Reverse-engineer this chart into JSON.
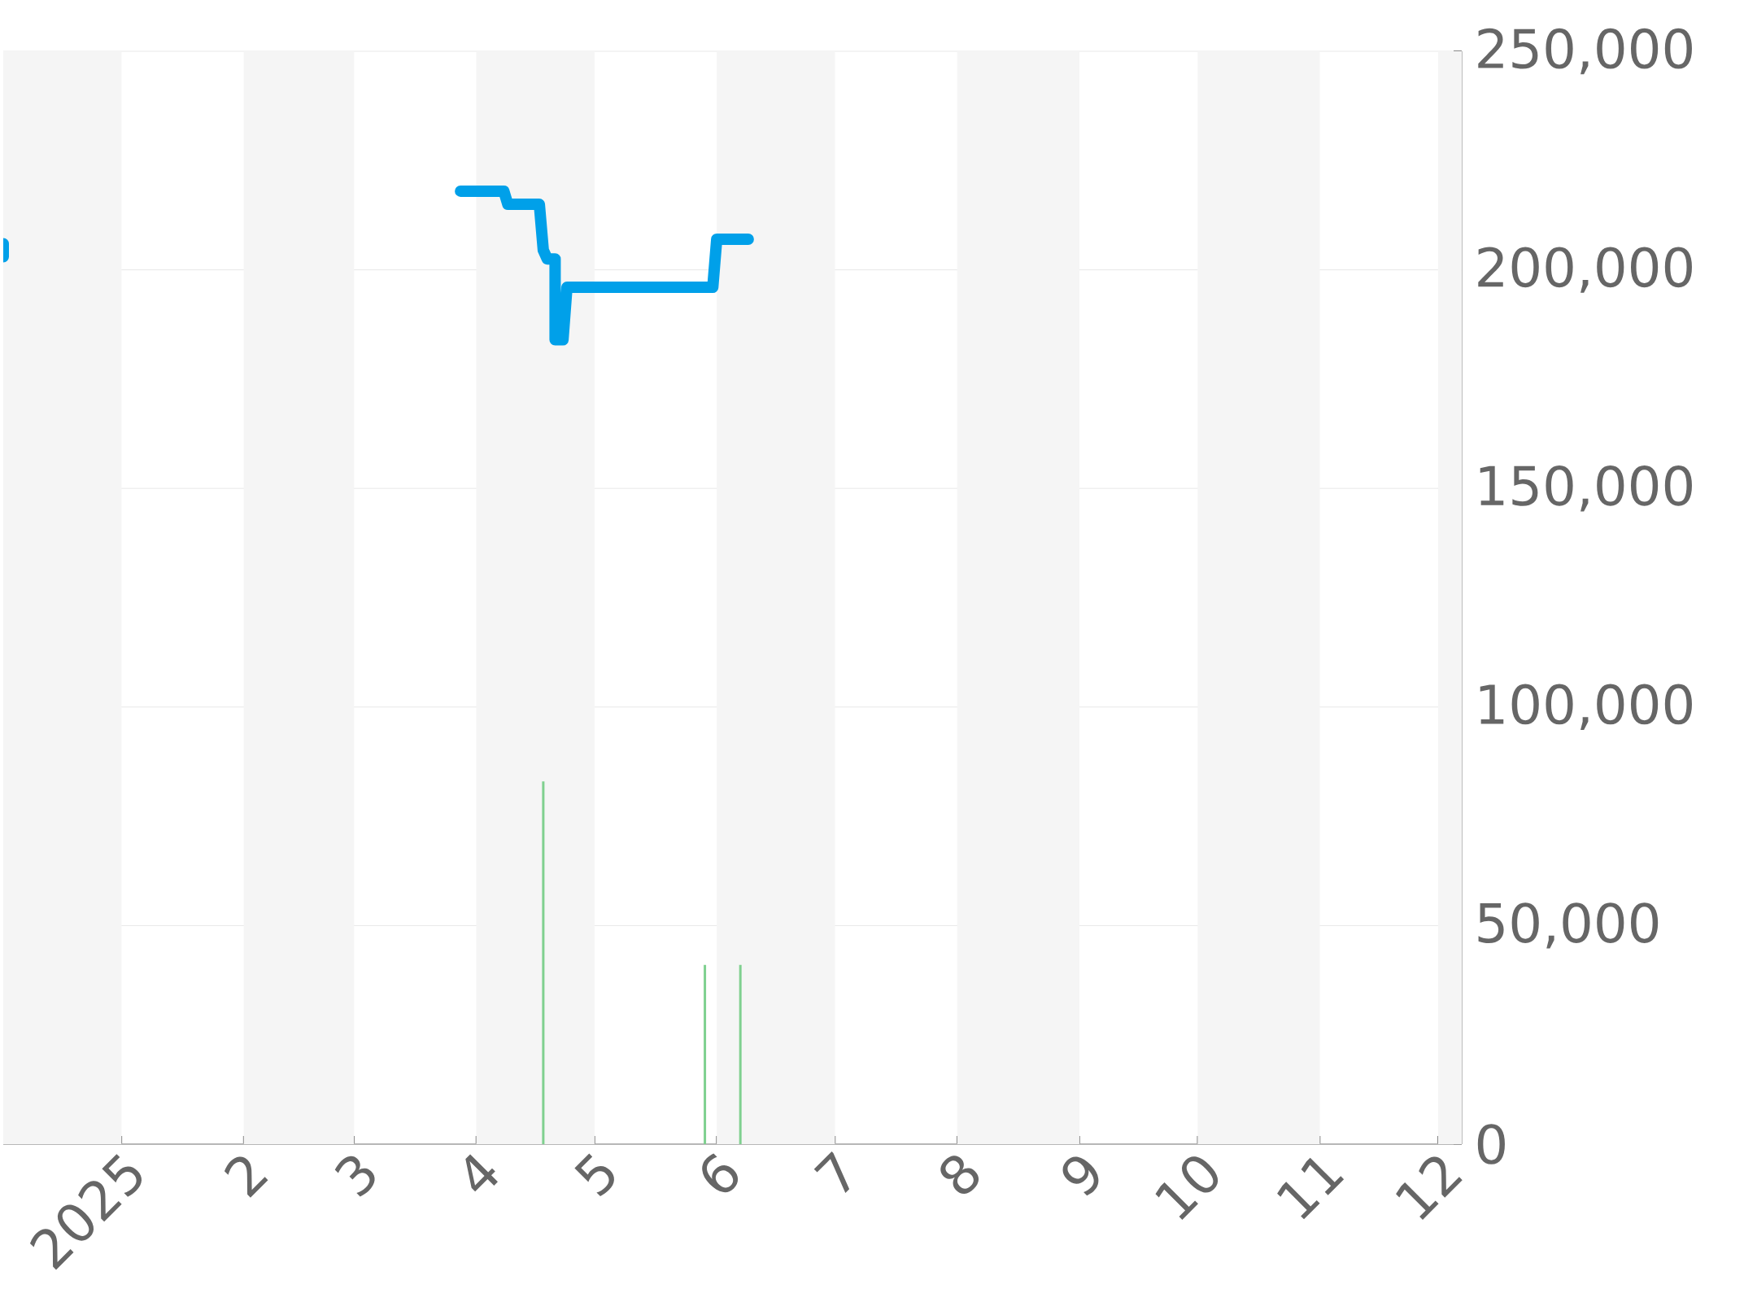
{
  "chart_data": {
    "type": "line",
    "xlim": [
      "2024-12-02",
      "2025-12-07"
    ],
    "ylim": [
      0,
      250000
    ],
    "xticks": [
      {
        "value": "2025-01-01",
        "label": "2025"
      },
      {
        "value": "2025-02-01",
        "label": "2"
      },
      {
        "value": "2025-03-01",
        "label": "3"
      },
      {
        "value": "2025-04-01",
        "label": "4"
      },
      {
        "value": "2025-05-01",
        "label": "5"
      },
      {
        "value": "2025-06-01",
        "label": "6"
      },
      {
        "value": "2025-07-01",
        "label": "7"
      },
      {
        "value": "2025-08-01",
        "label": "8"
      },
      {
        "value": "2025-09-01",
        "label": "9"
      },
      {
        "value": "2025-10-01",
        "label": "10"
      },
      {
        "value": "2025-11-01",
        "label": "11"
      },
      {
        "value": "2025-12-01",
        "label": "12"
      }
    ],
    "yticks": [
      0,
      {
        "value": 50000,
        "label": "50,000"
      },
      {
        "value": 100000,
        "label": "100,000"
      },
      {
        "value": 150000,
        "label": "150,000"
      },
      {
        "value": 200000,
        "label": "200,000"
      },
      {
        "value": 250000,
        "label": "250,000"
      }
    ],
    "grid": "y",
    "marker": "none",
    "line_style": "solid",
    "bands": [
      {
        "axis": "x",
        "from": "2024-12-02",
        "to": "2025-01-01",
        "color": "#f5f5f5"
      },
      {
        "axis": "x",
        "from": "2025-02-01",
        "to": "2025-03-01",
        "color": "#f5f5f5"
      },
      {
        "axis": "x",
        "from": "2025-04-01",
        "to": "2025-05-01",
        "color": "#f5f5f5"
      },
      {
        "axis": "x",
        "from": "2025-06-01",
        "to": "2025-07-01",
        "color": "#f5f5f5"
      },
      {
        "axis": "x",
        "from": "2025-08-01",
        "to": "2025-09-01",
        "color": "#f5f5f5"
      },
      {
        "axis": "x",
        "from": "2025-10-01",
        "to": "2025-11-01",
        "color": "#f5f5f5"
      },
      {
        "axis": "x",
        "from": "2025-12-01",
        "to": "2025-12-07",
        "color": "#f5f5f5"
      }
    ],
    "series": [
      {
        "type": "bar",
        "color": "#7fd08f",
        "x": [
          "2025-04-18",
          "2025-05-29",
          "2025-06-07"
        ],
        "values": [
          83000,
          41000,
          41000
        ]
      },
      {
        "color": "#00a0e9",
        "x": [
          "2024-12-02",
          "2024-12-02",
          "2025-01-15",
          "2025-03-28",
          "2025-04-08",
          "2025-04-09",
          "2025-04-17",
          "2025-04-18",
          "2025-04-19",
          "2025-04-21",
          "2025-04-21",
          "2025-04-23",
          "2025-04-24",
          "2025-05-31",
          "2025-06-01",
          "2025-06-09"
        ],
        "values": [
          206000,
          203000,
          null,
          218000,
          218000,
          215000,
          215000,
          204500,
          202500,
          202500,
          184000,
          184000,
          196000,
          196000,
          207000,
          207000
        ]
      }
    ]
  }
}
